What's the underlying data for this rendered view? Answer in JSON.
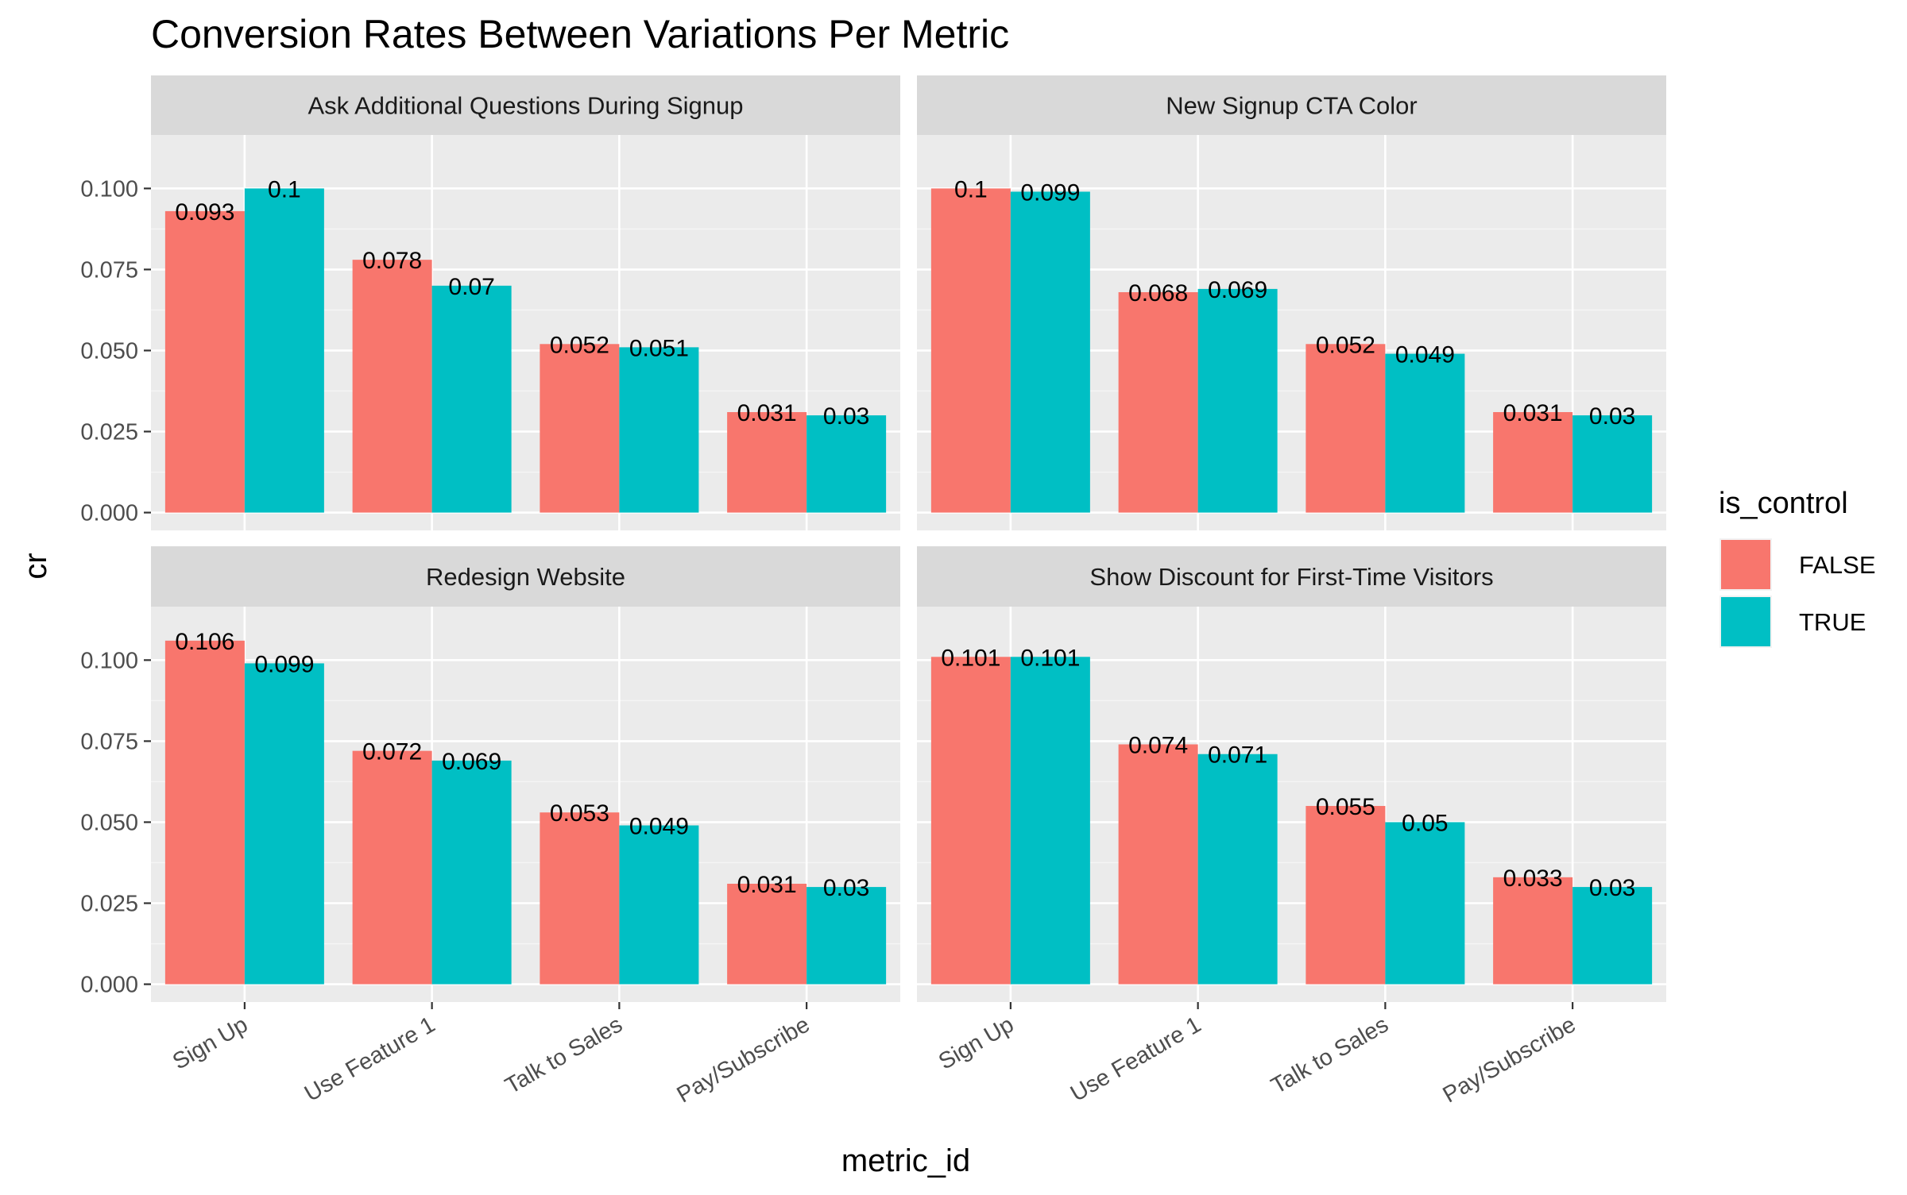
{
  "chart_data": {
    "type": "bar",
    "title": "Conversion Rates Between Variations Per Metric",
    "xlabel": "metric_id",
    "ylabel": "cr",
    "ylim": [
      -0.0055,
      0.1165
    ],
    "yticks": [
      0.0,
      0.025,
      0.05,
      0.075,
      0.1
    ],
    "ytick_labels": [
      "0.000",
      "0.025",
      "0.050",
      "0.075",
      "0.100"
    ],
    "categories": [
      "Sign Up",
      "Use Feature 1",
      "Talk to Sales",
      "Pay/Subscribe"
    ],
    "grid": true,
    "legend": {
      "title": "is_control",
      "position": "right",
      "entries": [
        {
          "name": "FALSE",
          "color": "#F8766D"
        },
        {
          "name": "TRUE",
          "color": "#00BFC4"
        }
      ]
    },
    "facets": [
      {
        "title": "Ask Additional Questions During Signup",
        "series": [
          {
            "name": "FALSE",
            "values": [
              0.093,
              0.078,
              0.052,
              0.031
            ],
            "labels": [
              "0.093",
              "0.078",
              "0.052",
              "0.031"
            ]
          },
          {
            "name": "TRUE",
            "values": [
              0.1,
              0.07,
              0.051,
              0.03
            ],
            "labels": [
              "0.1",
              "0.07",
              "0.051",
              "0.03"
            ]
          }
        ]
      },
      {
        "title": "New Signup CTA Color",
        "series": [
          {
            "name": "FALSE",
            "values": [
              0.1,
              0.068,
              0.052,
              0.031
            ],
            "labels": [
              "0.1",
              "0.068",
              "0.052",
              "0.031"
            ]
          },
          {
            "name": "TRUE",
            "values": [
              0.099,
              0.069,
              0.049,
              0.03
            ],
            "labels": [
              "0.099",
              "0.069",
              "0.049",
              "0.03"
            ]
          }
        ]
      },
      {
        "title": "Redesign Website",
        "series": [
          {
            "name": "FALSE",
            "values": [
              0.106,
              0.072,
              0.053,
              0.031
            ],
            "labels": [
              "0.106",
              "0.072",
              "0.053",
              "0.031"
            ]
          },
          {
            "name": "TRUE",
            "values": [
              0.099,
              0.069,
              0.049,
              0.03
            ],
            "labels": [
              "0.099",
              "0.069",
              "0.049",
              "0.03"
            ]
          }
        ]
      },
      {
        "title": "Show Discount for First-Time Visitors",
        "series": [
          {
            "name": "FALSE",
            "values": [
              0.101,
              0.074,
              0.055,
              0.033
            ],
            "labels": [
              "0.101",
              "0.074",
              "0.055",
              "0.033"
            ]
          },
          {
            "name": "TRUE",
            "values": [
              0.101,
              0.071,
              0.05,
              0.03
            ],
            "labels": [
              "0.101",
              "0.071",
              "0.05",
              "0.03"
            ]
          }
        ]
      }
    ]
  }
}
